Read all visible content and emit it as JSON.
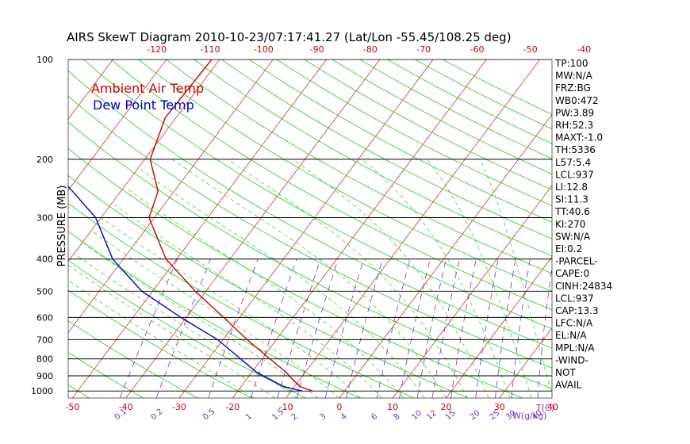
{
  "chart_data": {
    "type": "line",
    "title": "AIRS SkewT Diagram 2010-10-23/07:17:41.27 (Lat/Lon -55.45/108.25 deg)",
    "ylabel": "PRESSURE (MB)",
    "xlabel": "T(C)",
    "mixing_ratio_label": "W(g/kg)",
    "y_scale": "log",
    "ylim": [
      1050,
      100
    ],
    "xlim": [
      -50,
      40
    ],
    "pressure_levels": [
      100,
      200,
      300,
      400,
      500,
      600,
      700,
      800,
      900,
      1000
    ],
    "bottom_ticks": [
      -50,
      -40,
      -30,
      -20,
      -10,
      0,
      10,
      20,
      30,
      40
    ],
    "top_ticks": [
      -120,
      -110,
      -100,
      -90,
      -80,
      -70,
      -60,
      -50,
      -40
    ],
    "mixing_ratios": [
      "0.1",
      "0.2",
      "0.5",
      "1",
      "1.5",
      "2",
      "3",
      "4",
      "6",
      "8",
      "10",
      "12",
      "15",
      "20",
      "25",
      "30",
      "40"
    ],
    "legend": [
      "Ambient Air Temp",
      "Dew Point Temp"
    ],
    "legend_placement": "top-left",
    "colors": {
      "ambient": "#cc0000",
      "dewpoint": "#0000cc",
      "isotherm": "#e03030",
      "dry_adiabat": "#22cc22",
      "moist_adiabat": "#33dd33",
      "mixing_ratio": "#7a30c8",
      "isobar": "#000000"
    },
    "series": [
      {
        "name": "Ambient Air Temp",
        "points": [
          {
            "p": 1000,
            "t": -6.0
          },
          {
            "p": 970,
            "t": -9.0
          },
          {
            "p": 930,
            "t": -11.0
          },
          {
            "p": 880,
            "t": -13.5
          },
          {
            "p": 800,
            "t": -18.5
          },
          {
            "p": 700,
            "t": -25.5
          },
          {
            "p": 600,
            "t": -33.0
          },
          {
            "p": 500,
            "t": -42.0
          },
          {
            "p": 400,
            "t": -52.0
          },
          {
            "p": 300,
            "t": -61.0
          },
          {
            "p": 250,
            "t": -63.0
          },
          {
            "p": 200,
            "t": -69.0
          },
          {
            "p": 150,
            "t": -72.0
          },
          {
            "p": 100,
            "t": -71.5
          }
        ]
      },
      {
        "name": "Dew Point Temp",
        "points": [
          {
            "p": 1000,
            "t": -8.0
          },
          {
            "p": 970,
            "t": -12.0
          },
          {
            "p": 930,
            "t": -15.0
          },
          {
            "p": 880,
            "t": -19.0
          },
          {
            "p": 800,
            "t": -24.0
          },
          {
            "p": 700,
            "t": -31.0
          },
          {
            "p": 600,
            "t": -41.0
          },
          {
            "p": 500,
            "t": -52.0
          },
          {
            "p": 400,
            "t": -62.0
          },
          {
            "p": 300,
            "t": -71.0
          },
          {
            "p": 250,
            "t": -79.0
          },
          {
            "p": 200,
            "t": -89.0
          },
          {
            "p": 150,
            "t": -96.0
          },
          {
            "p": 100,
            "t": -99.0
          }
        ]
      }
    ]
  },
  "indices": [
    "TP:100",
    "MW:N/A",
    "FRZ:BG",
    "WB0:472",
    "PW:3.89",
    "RH:52.3",
    "MAXT:-1.0",
    "TH:5336",
    "L57:5.4",
    "LCL:937",
    "LI:12.8",
    "SI:11.3",
    "TT:40.6",
    "KI:270",
    "SW:N/A",
    "EI:0.2",
    "-PARCEL-",
    "CAPE:0",
    "CINH:24834",
    "LCL:937",
    "CAP:13.3",
    "LFC:N/A",
    "EL:N/A",
    "MPL:N/A",
    "-WIND-",
    "NOT",
    "AVAIL"
  ]
}
